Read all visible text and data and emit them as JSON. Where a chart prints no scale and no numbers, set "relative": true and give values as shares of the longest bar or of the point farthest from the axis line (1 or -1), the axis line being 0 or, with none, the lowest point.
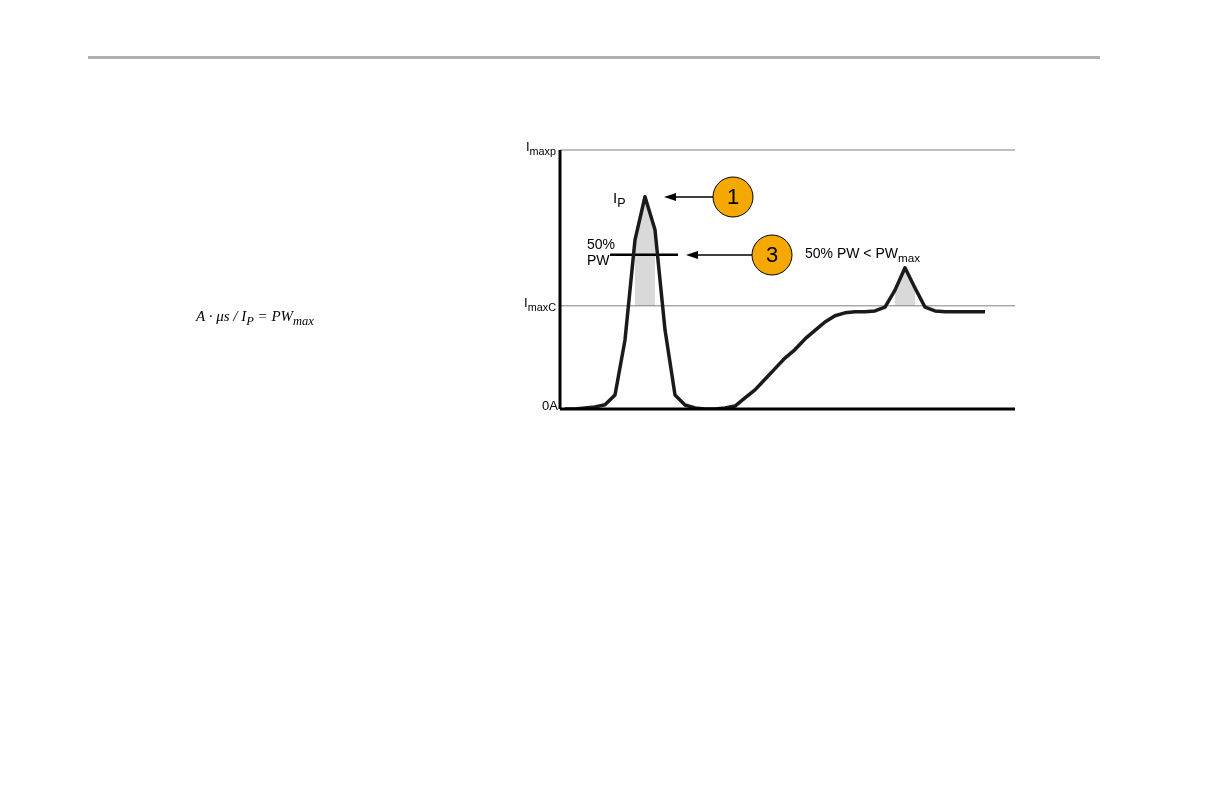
{
  "chart_data": {
    "type": "line",
    "relative": true,
    "categories": [
      null,
      null,
      null,
      null,
      null,
      null,
      null,
      null,
      null,
      null,
      null,
      null,
      null,
      null,
      null,
      null,
      null,
      null,
      null,
      null,
      null,
      null,
      null,
      null,
      null,
      null,
      null,
      null,
      null,
      null,
      null,
      null,
      null,
      null,
      null,
      null,
      null,
      null,
      null,
      null,
      null,
      null,
      null
    ],
    "series": [
      {
        "color": "#1a1a1a",
        "values": [
          0,
          0,
          0.005,
          0.01,
          0.02,
          0.066,
          0.325,
          0.797,
          1.0,
          0.844,
          0.373,
          0.066,
          0.019,
          0.005,
          0,
          0,
          0.005,
          0.014,
          0.052,
          0.09,
          0.14,
          0.19,
          0.24,
          0.28,
          0.33,
          0.37,
          0.41,
          0.439,
          0.453,
          0.458,
          0.458,
          0.462,
          0.48,
          0.56,
          0.665,
          0.57,
          0.48,
          0.462,
          0.458,
          0.458,
          0.458,
          0.458,
          0.458
        ],
        "lower": [
          null,
          null,
          null,
          null,
          null,
          null,
          null,
          0.486,
          0.486,
          0.486,
          null,
          null,
          null,
          null,
          null,
          null,
          null,
          null,
          null,
          null,
          null,
          null,
          null,
          null,
          null,
          null,
          null,
          null,
          null,
          null,
          null,
          null,
          null,
          0.486,
          0.486,
          0.486,
          null,
          null,
          null,
          null,
          null,
          null,
          null
        ],
        "upper": [
          null,
          null,
          null,
          null,
          null,
          null,
          null,
          0.797,
          1.0,
          0.844,
          null,
          null,
          null,
          null,
          null,
          null,
          null,
          null,
          null,
          null,
          null,
          null,
          null,
          null,
          null,
          null,
          null,
          null,
          null,
          null,
          null,
          null,
          null,
          0.56,
          0.665,
          0.57,
          null,
          null,
          null,
          null,
          null,
          null,
          null
        ]
      }
    ],
    "ref_lines": [
      {
        "axis": "y",
        "value": 1.22,
        "label": "I$_{maxp}$",
        "color": "#808080"
      },
      {
        "axis": "y",
        "value": 0.486,
        "label": "I$_{maxC}$",
        "color": "#808080"
      },
      {
        "axis": "y",
        "value": 0.726,
        "label": "50%\nPW",
        "color": "#000000"
      }
    ],
    "annotations": [
      "0A",
      "I$_{P}$",
      "1",
      "3",
      "50% PW < PW$_{max}$",
      "A · μs / I$_{P}$ = PW$_{max}$"
    ],
    "marker": "none",
    "line_style": "solid"
  }
}
